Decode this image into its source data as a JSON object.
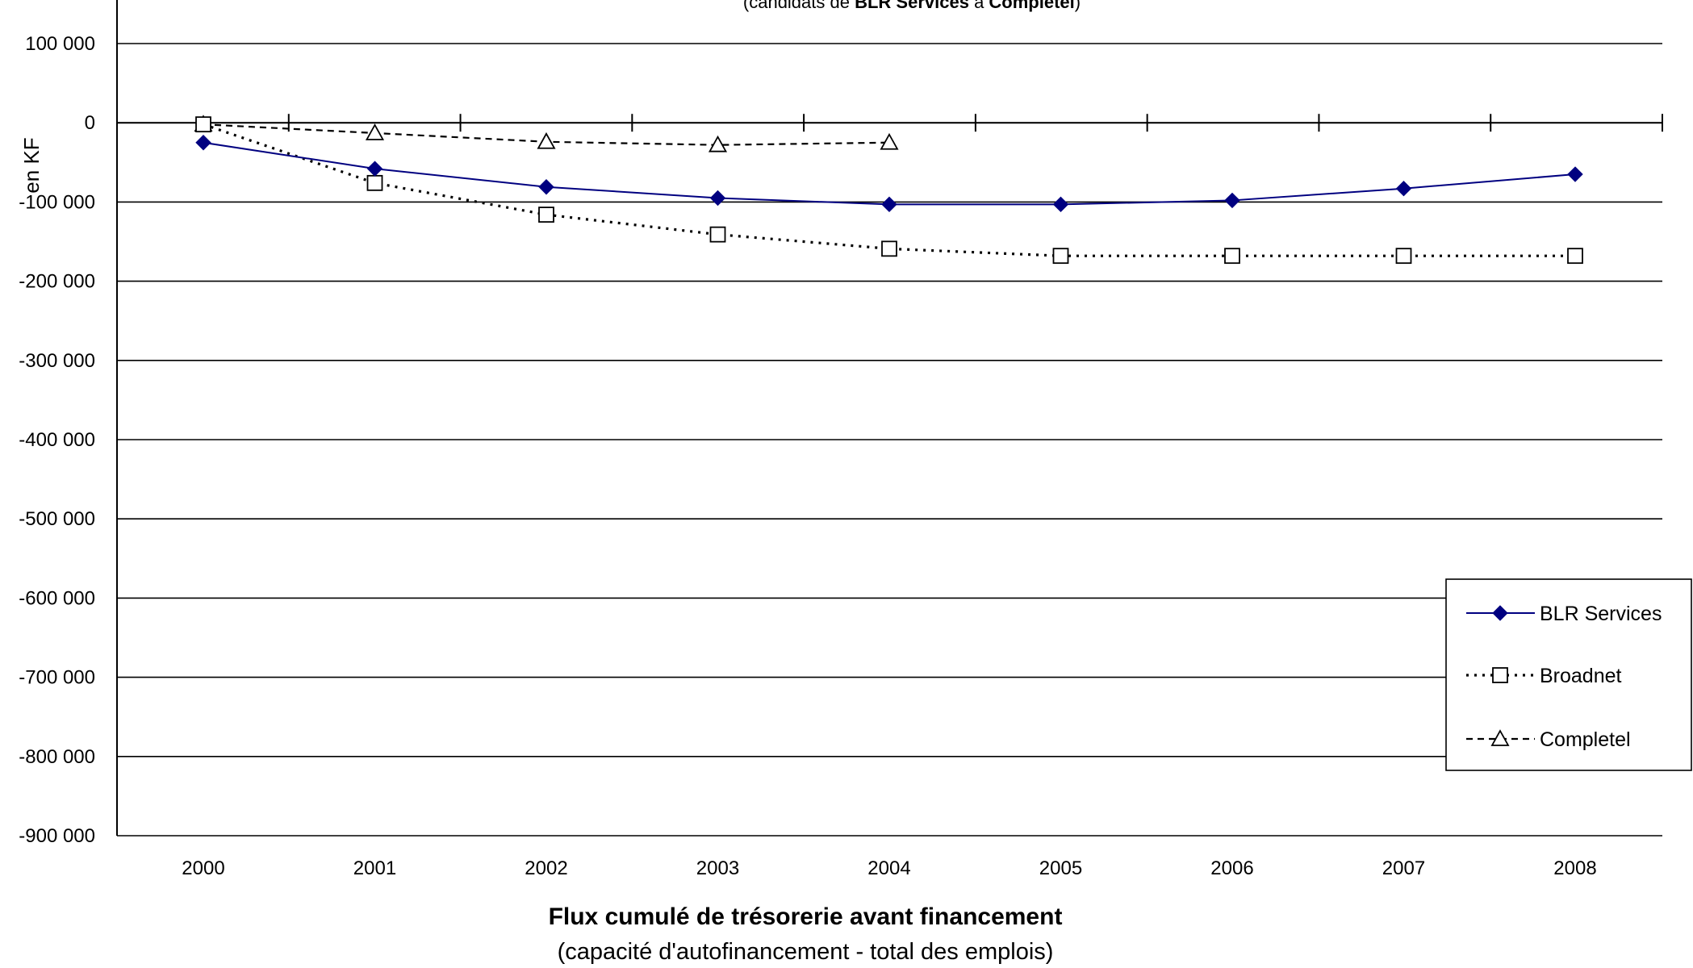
{
  "chart_data": {
    "type": "line",
    "title": "Flux cumulé de trésorerie avant financement",
    "subtitle": "(capacité d'autofinancement - total des emplois)",
    "top_caption": {
      "prefix": "(candidats de ",
      "bold1": "BLR Services",
      "middle": " à ",
      "bold2": "Completel",
      "suffix": ")"
    },
    "ylabel": "en KF",
    "xlabel": "",
    "categories": [
      "2000",
      "2001",
      "2002",
      "2003",
      "2004",
      "2005",
      "2006",
      "2007",
      "2008"
    ],
    "ylim": [
      -900000,
      100000
    ],
    "yticks": [
      100000,
      0,
      -100000,
      -200000,
      -300000,
      -400000,
      -500000,
      -600000,
      -700000,
      -800000,
      -900000
    ],
    "ytick_labels": [
      "100 000",
      "0",
      "-100 000",
      "-200 000",
      "-300 000",
      "-400 000",
      "-500 000",
      "-600 000",
      "-700 000",
      "-800 000",
      "-900 000"
    ],
    "grid": true,
    "legend_position": "right",
    "series": [
      {
        "name": "BLR Services",
        "color": "#000080",
        "marker": "diamond",
        "line_style": "solid",
        "values": [
          -25000,
          -58000,
          -81000,
          -95000,
          -103000,
          -103000,
          -98000,
          -83000,
          -65000
        ]
      },
      {
        "name": "Broadnet",
        "color": "#000000",
        "marker": "square",
        "line_style": "dotted",
        "values": [
          -2000,
          -76000,
          -116000,
          -141000,
          -159000,
          -168000,
          -168000,
          -168000,
          -168000
        ]
      },
      {
        "name": "Completel",
        "color": "#000000",
        "marker": "triangle",
        "line_style": "dashed",
        "values": [
          -2000,
          -13000,
          -24000,
          -28000,
          -25000,
          null,
          null,
          null,
          null
        ]
      }
    ]
  }
}
